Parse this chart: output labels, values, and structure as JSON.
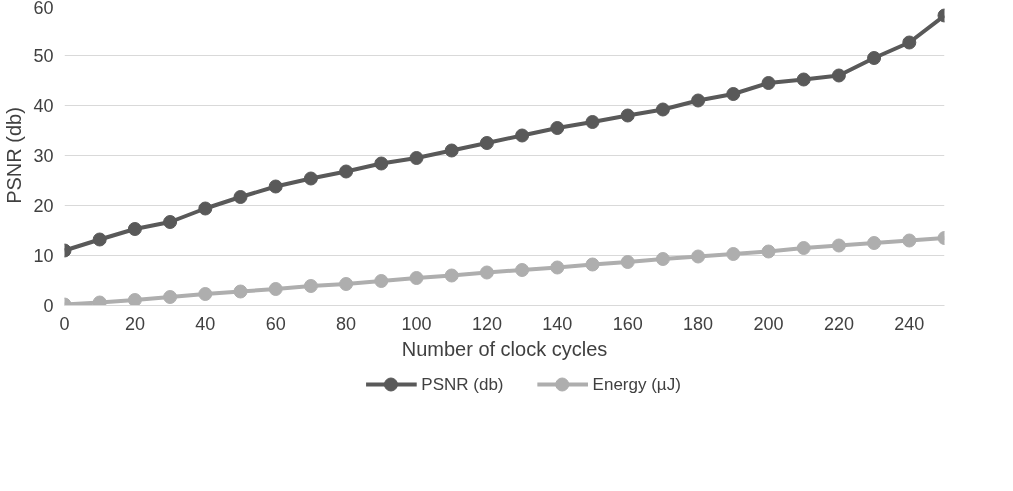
{
  "chart_data": {
    "type": "line",
    "xlabel": "Number of clock cycles",
    "ylabel": "PSNR (db)",
    "x": [
      0,
      10,
      20,
      30,
      40,
      50,
      60,
      70,
      80,
      90,
      100,
      110,
      120,
      130,
      140,
      150,
      160,
      170,
      180,
      190,
      200,
      210,
      220,
      230,
      240,
      250
    ],
    "series": [
      {
        "name": "PSNR (db)",
        "color": "#595959",
        "values": [
          11,
          13.2,
          15.3,
          16.7,
          19.4,
          21.7,
          23.8,
          25.4,
          26.8,
          28.4,
          29.5,
          31,
          32.5,
          34,
          35.5,
          36.7,
          38,
          39.2,
          41,
          42.3,
          44.5,
          45.2,
          46,
          49.5,
          52.6,
          58
        ]
      },
      {
        "name": "Energy (µJ)",
        "color": "#aeaeae",
        "values": [
          0.2,
          0.6,
          1.1,
          1.7,
          2.3,
          2.8,
          3.3,
          3.9,
          4.3,
          4.9,
          5.5,
          6,
          6.6,
          7.1,
          7.6,
          8.2,
          8.7,
          9.3,
          9.8,
          10.3,
          10.8,
          11.5,
          12,
          12.5,
          13,
          13.5
        ]
      }
    ],
    "xlim": [
      0,
      250
    ],
    "ylim": [
      0,
      60
    ],
    "xticks": [
      0,
      20,
      40,
      60,
      80,
      100,
      120,
      140,
      160,
      180,
      200,
      220,
      240
    ],
    "yticks": [
      0,
      10,
      20,
      30,
      40,
      50,
      60
    ],
    "grid": "y",
    "legend": "bottom",
    "marker": "circle",
    "line_style": "solid"
  }
}
